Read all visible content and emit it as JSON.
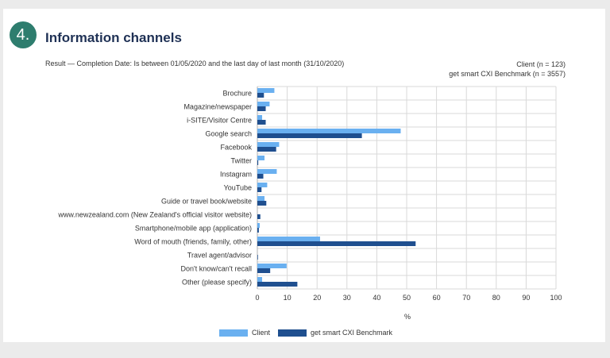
{
  "badge": "4.",
  "title": "Information channels",
  "subtitle": "Result  —  Completion Date: Is between 01/05/2020 and the last day of last month (31/10/2020)",
  "sample": {
    "client": "Client (n = 123)",
    "benchmark": "get smart CXI Benchmark (n = 3557)"
  },
  "colors": {
    "client": "#6ab0f0",
    "benchmark": "#1f4f8f",
    "grid": "#d9d9d9"
  },
  "chart_data": {
    "type": "bar",
    "orientation": "horizontal",
    "categories": [
      "Brochure",
      "Magazine/newspaper",
      "i-SITE/Visitor Centre",
      "Google search",
      "Facebook",
      "Twitter",
      "Instagram",
      "YouTube",
      "Guide or travel book/website",
      "www.newzealand.com (New Zealand's official visitor website)",
      "Smartphone/mobile app (application)",
      "Word of mouth (friends, family, other)",
      "Travel agent/advisor",
      "Don't know/can't recall",
      "Other (please specify)"
    ],
    "series": [
      {
        "name": "Client",
        "values": [
          5.7,
          4.1,
          1.6,
          48,
          7.3,
          2.4,
          6.5,
          3.3,
          2.4,
          0,
          0.8,
          21,
          0,
          9.8,
          1.6
        ]
      },
      {
        "name": "get smart CXI Benchmark",
        "values": [
          2.2,
          2.8,
          2.8,
          35,
          6.3,
          0.3,
          2.0,
          1.4,
          3.0,
          1.0,
          0.5,
          53,
          0.2,
          4.3,
          13.4
        ]
      }
    ],
    "xlim": [
      0,
      100
    ],
    "xticks": [
      0,
      10,
      20,
      30,
      40,
      50,
      60,
      70,
      80,
      90,
      100
    ],
    "xlabel": "%",
    "ylabel": "",
    "grid": true,
    "legend": "bottom"
  }
}
